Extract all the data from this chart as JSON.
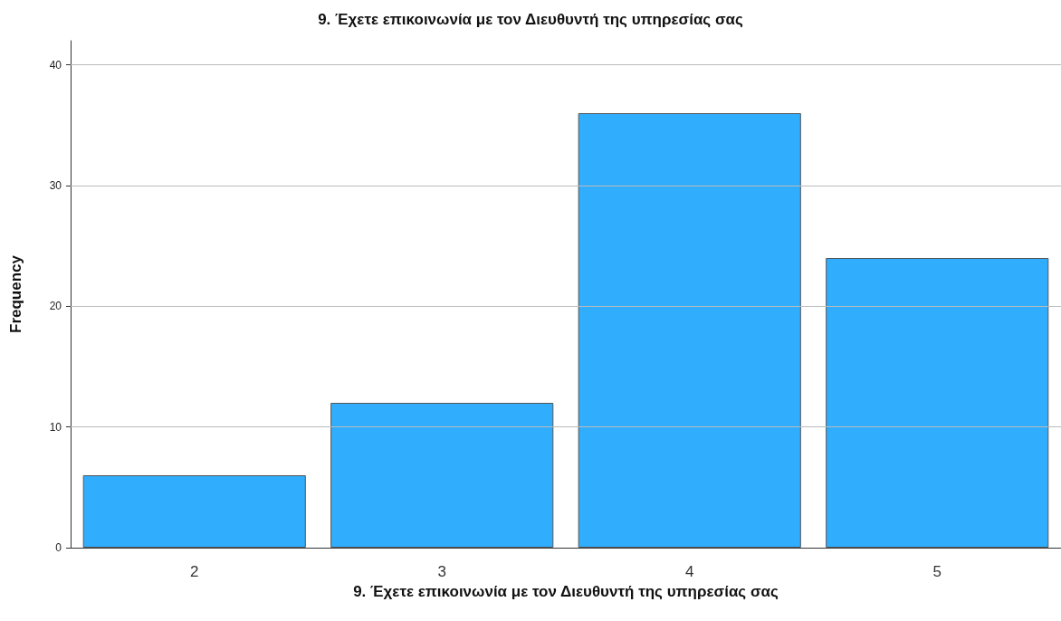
{
  "chart_data": {
    "type": "bar",
    "title": "9. Έχετε επικοινωνία με τον Διευθυντή της υπηρεσίας σας",
    "xlabel": "9. Έχετε επικοινωνία με τον Διευθυντή της υπηρεσίας σας",
    "ylabel": "Frequency",
    "categories": [
      "2",
      "3",
      "4",
      "5"
    ],
    "values": [
      6,
      12,
      36,
      24
    ],
    "color": "#30adfd",
    "ylim": [
      0,
      42
    ],
    "yticks": [
      0,
      10,
      20,
      30,
      40
    ],
    "grid": "y"
  }
}
